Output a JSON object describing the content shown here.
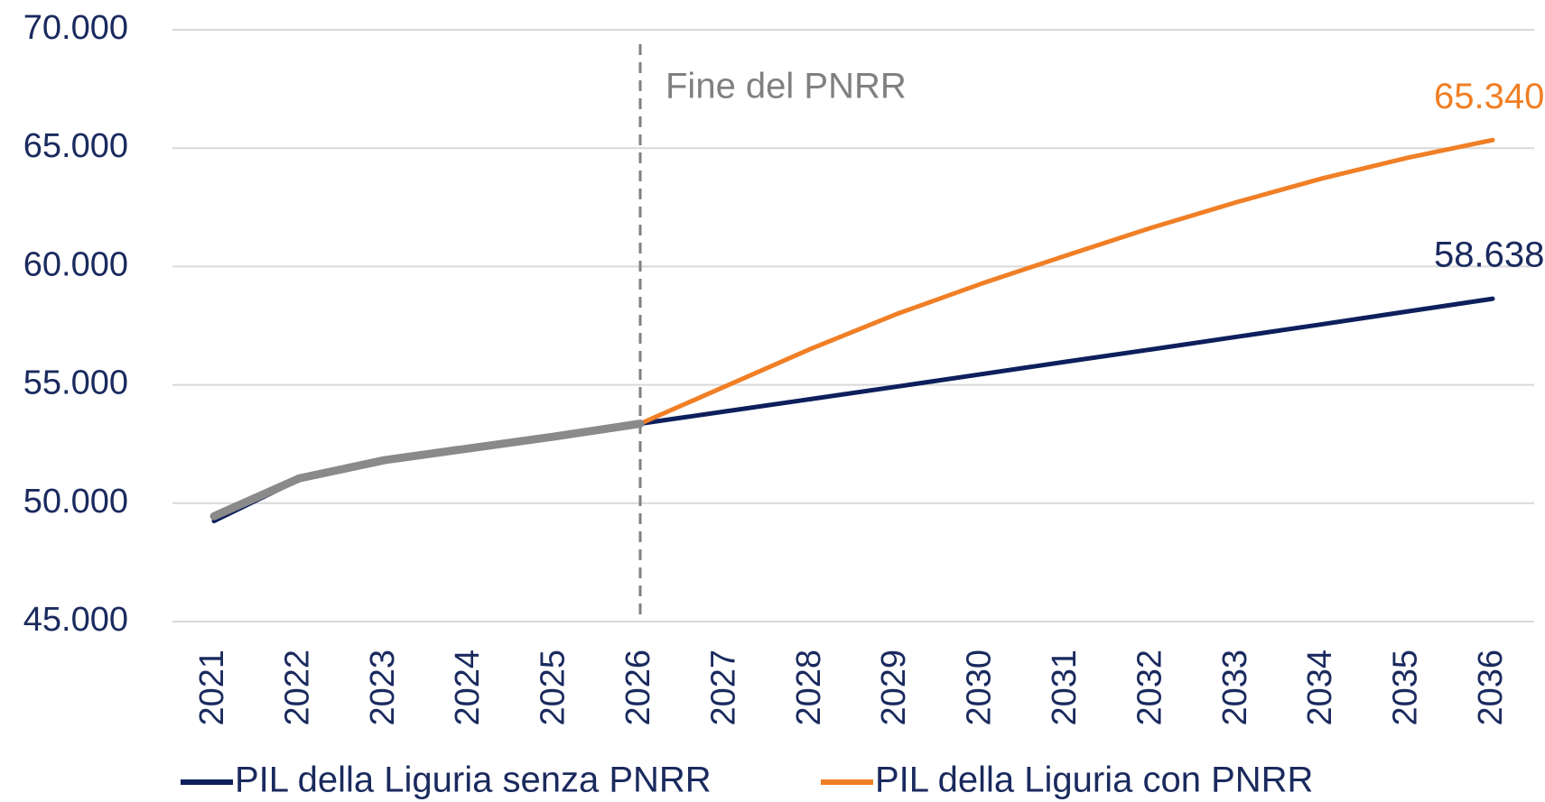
{
  "chart_data": {
    "type": "line",
    "categories": [
      "2021",
      "2022",
      "2023",
      "2024",
      "2025",
      "2026",
      "2027",
      "2028",
      "2029",
      "2030",
      "2031",
      "2032",
      "2033",
      "2034",
      "2035",
      "2036"
    ],
    "series": [
      {
        "name": "PIL della Liguria senza PNRR",
        "color": "#0d1f5c",
        "values": [
          49250,
          51000,
          51820,
          52320,
          52820,
          53360,
          53880,
          54400,
          54920,
          55450,
          55980,
          56500,
          57030,
          57560,
          58100,
          58638
        ],
        "value_labels": [
          null,
          null,
          null,
          null,
          null,
          null,
          null,
          null,
          null,
          null,
          null,
          null,
          null,
          null,
          null,
          "58.638"
        ]
      },
      {
        "name": "PIL della Liguria con PNRR",
        "color": "#f07f26",
        "values": [
          49450,
          51050,
          51820,
          52320,
          52820,
          53360,
          54940,
          56520,
          57980,
          59270,
          60470,
          61640,
          62720,
          63720,
          64590,
          65340
        ],
        "value_labels": [
          null,
          null,
          null,
          null,
          null,
          null,
          null,
          null,
          null,
          null,
          null,
          null,
          null,
          null,
          null,
          "65.340"
        ]
      },
      {
        "color": "#8a8a8a",
        "values": [
          49450,
          51050,
          51820,
          52320,
          52820,
          53360,
          null,
          null,
          null,
          null,
          null,
          null,
          null,
          null,
          null,
          null
        ]
      }
    ],
    "annotations": [
      {
        "text": "Fine del PNRR",
        "x": "2026"
      }
    ],
    "ylim": [
      45000,
      70000
    ],
    "yticks": [
      {
        "value": 45000,
        "label": "45.000"
      },
      {
        "value": 50000,
        "label": "50.000"
      },
      {
        "value": 55000,
        "label": "55.000"
      },
      {
        "value": 60000,
        "label": "60.000"
      },
      {
        "value": 65000,
        "label": "65.000"
      },
      {
        "value": 70000,
        "label": "70.000"
      }
    ],
    "grid": true,
    "legend": "bottom"
  }
}
